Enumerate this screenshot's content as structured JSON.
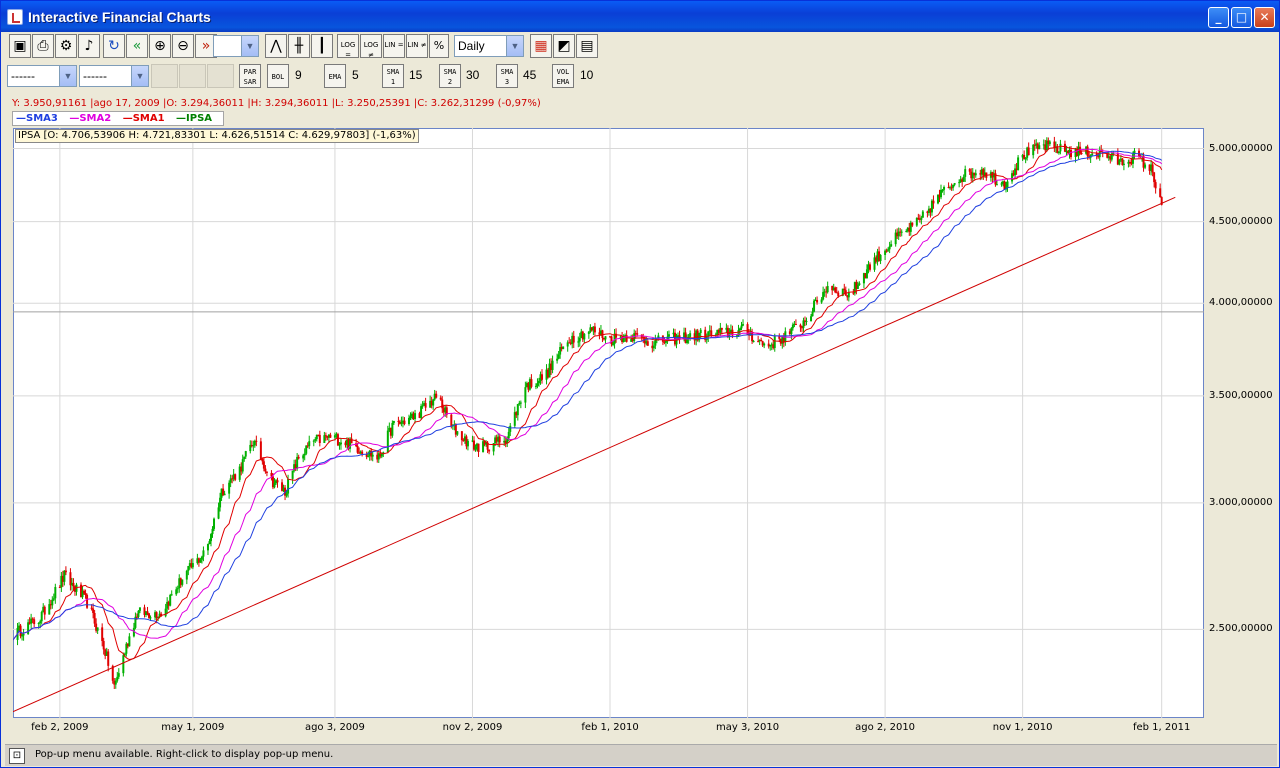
{
  "window": {
    "title": "Interactive Financial Charts",
    "minimize": "_",
    "maximize": "□",
    "close": "✕"
  },
  "toolbar1": {
    "period_select": "Daily",
    "log_buttons": [
      "LOG =",
      "LOG ≠",
      "LIN =",
      "LIN ≠",
      "%"
    ],
    "icons": [
      "save-icon",
      "print-icon",
      "settings-icon",
      "sound-icon",
      "refresh-icon",
      "scroll-left-icon",
      "zoom-in-icon",
      "zoom-out-icon",
      "scroll-right-icon",
      "line-chart-icon",
      "ohlc-bars-icon",
      "candlestick-icon",
      "color-scheme-icon",
      "chart-area-icon",
      "indicators-panel-icon"
    ]
  },
  "toolbar2": {
    "combo1": "------",
    "combo2": "------",
    "parsar": "PAR SAR",
    "bol": {
      "label": "BOL",
      "value": "9"
    },
    "ema": {
      "label": "EMA",
      "value": "5"
    },
    "sma1": {
      "label": "SMA 1",
      "value": "15"
    },
    "sma2": {
      "label": "SMA 2",
      "value": "30"
    },
    "sma3": {
      "label": "SMA 3",
      "value": "45"
    },
    "volema": {
      "label": "VOL EMA",
      "value": "10"
    }
  },
  "status_line": "Y: 3.950,91161 |ago 17, 2009 |O: 3.294,36011 |H: 3.294,36011 |L: 3.250,25391 |C: 3.262,31299 (-0,97%)",
  "legend": [
    {
      "name": "SMA3",
      "color": "#2040e0"
    },
    {
      "name": "SMA2",
      "color": "#e000e0"
    },
    {
      "name": "SMA1",
      "color": "#e00000"
    },
    {
      "name": "IPSA",
      "color": "#008000"
    }
  ],
  "ohlc_box": "IPSA [O: 4.706,53906  H: 4.721,83301  L: 4.626,51514  C: 4.629,97803]  (-1,63%)",
  "statusbar": "Pop-up menu available. Right-click to display pop-up menu.",
  "chart_data": {
    "type": "candlestick",
    "title": "",
    "y_scale": "log",
    "ylim": [
      2200,
      5150
    ],
    "y_ticks": [
      "2.500,00000",
      "3.000,00000",
      "3.500,00000",
      "4.000,00000",
      "4.500,00000",
      "5.000,00000"
    ],
    "y_tick_values": [
      2500,
      3000,
      3500,
      4000,
      4500,
      5000
    ],
    "x_ticks": [
      "feb 2, 2009",
      "may 1, 2009",
      "ago 3, 2009",
      "nov 2, 2009",
      "feb 1, 2010",
      "may 3, 2010",
      "ago 2, 2010",
      "nov 1, 2010",
      "feb 1, 2011"
    ],
    "x_tick_dates": [
      "2009-02-02",
      "2009-05-01",
      "2009-08-03",
      "2009-11-02",
      "2010-02-01",
      "2010-05-03",
      "2010-08-02",
      "2010-11-01",
      "2011-02-01"
    ],
    "x_range": [
      "2009-01-02",
      "2011-03-01"
    ],
    "cursor_y": 3950.91161,
    "trendline": {
      "start": {
        "x": "2009-01-02",
        "y": 2220
      },
      "end": {
        "x": "2011-02-10",
        "y": 4660
      },
      "color": "#d00000"
    },
    "price_path": {
      "dates": [
        "2009-01-02",
        "2009-01-20",
        "2009-02-05",
        "2009-02-20",
        "2009-03-03",
        "2009-03-10",
        "2009-03-25",
        "2009-04-10",
        "2009-04-25",
        "2009-05-10",
        "2009-05-20",
        "2009-06-01",
        "2009-06-10",
        "2009-06-22",
        "2009-07-01",
        "2009-07-10",
        "2009-07-20",
        "2009-08-01",
        "2009-08-15",
        "2009-09-01",
        "2009-09-10",
        "2009-09-25",
        "2009-10-10",
        "2009-10-19",
        "2009-11-01",
        "2009-11-10",
        "2009-11-25",
        "2009-12-07",
        "2009-12-20",
        "2010-01-05",
        "2010-01-20",
        "2010-02-01",
        "2010-02-15",
        "2010-03-01",
        "2010-03-15",
        "2010-04-01",
        "2010-04-15",
        "2010-05-01",
        "2010-05-15",
        "2010-05-25",
        "2010-06-10",
        "2010-06-25",
        "2010-07-10",
        "2010-07-25",
        "2010-08-10",
        "2010-08-25",
        "2010-09-05",
        "2010-09-20",
        "2010-10-05",
        "2010-10-20",
        "2010-11-01",
        "2010-11-15",
        "2010-12-01",
        "2010-12-15",
        "2010-12-25",
        "2011-01-05",
        "2011-01-15",
        "2011-01-25",
        "2011-02-01"
      ],
      "close": [
        2480,
        2540,
        2700,
        2600,
        2440,
        2300,
        2560,
        2560,
        2700,
        2800,
        3050,
        3150,
        3280,
        3100,
        3050,
        3200,
        3280,
        3300,
        3260,
        3200,
        3350,
        3400,
        3500,
        3350,
        3260,
        3250,
        3300,
        3550,
        3600,
        3800,
        3850,
        3800,
        3820,
        3780,
        3800,
        3820,
        3830,
        3850,
        3760,
        3800,
        3900,
        4100,
        4050,
        4250,
        4400,
        4500,
        4650,
        4800,
        4850,
        4750,
        4950,
        5020,
        4980,
        4970,
        4960,
        4900,
        4950,
        4850,
        4630
      ]
    }
  }
}
